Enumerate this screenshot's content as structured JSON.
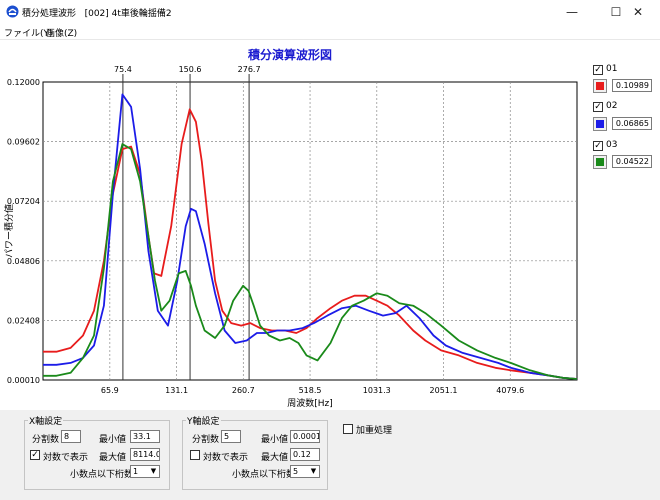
{
  "window": {
    "title": "積分処理波形   [002] 4t車後輪揺備2",
    "minimize": "—",
    "maximize": "☐",
    "close": "✕"
  },
  "menu": {
    "file": "ファイル(Y)",
    "image": "画像(Z)"
  },
  "colors": {
    "s01": "#e81c1c",
    "s02": "#1c1ce8",
    "s03": "#1a8a1a",
    "title": "#1c1cd0"
  },
  "chart_data": {
    "type": "line",
    "title": "積分演算波形図",
    "xlabel": "周波数[Hz]",
    "ylabel": "パワー積分値",
    "x_scale": "log",
    "xlim": [
      33.1,
      8114.0
    ],
    "ylim": [
      0.0001,
      0.12
    ],
    "x_ticks": [
      "65.9",
      "131.1",
      "260.7",
      "518.5",
      "1031.3",
      "2051.1",
      "4079.6"
    ],
    "y_ticks": [
      "0.00010",
      "0.02408",
      "0.04806",
      "0.07204",
      "0.09602",
      "0.12000"
    ],
    "markers": [
      "75.4",
      "150.6",
      "276.7"
    ],
    "grid": true,
    "series": [
      {
        "name": "01",
        "x": [
          33.1,
          38,
          44,
          50,
          56,
          62,
          68,
          75,
          82,
          90,
          98,
          104,
          112,
          124,
          138,
          150,
          160,
          170,
          182,
          195,
          210,
          230,
          255,
          280,
          310,
          350,
          400,
          450,
          500,
          560,
          640,
          720,
          820,
          920,
          1030,
          1150,
          1300,
          1500,
          1700,
          2000,
          2400,
          2900,
          3500,
          4100,
          5000,
          6000,
          7000,
          8114
        ],
        "values": [
          0.0115,
          0.0115,
          0.013,
          0.018,
          0.028,
          0.048,
          0.075,
          0.093,
          0.094,
          0.083,
          0.058,
          0.043,
          0.042,
          0.062,
          0.095,
          0.109,
          0.104,
          0.088,
          0.063,
          0.04,
          0.028,
          0.023,
          0.022,
          0.023,
          0.021,
          0.02,
          0.02,
          0.019,
          0.021,
          0.025,
          0.029,
          0.032,
          0.034,
          0.034,
          0.032,
          0.03,
          0.026,
          0.02,
          0.016,
          0.012,
          0.01,
          0.007,
          0.005,
          0.004,
          0.003,
          0.002,
          0.001,
          0.0005
        ]
      },
      {
        "name": "02",
        "x": [
          33.1,
          38,
          44,
          50,
          56,
          62,
          68,
          75,
          82,
          90,
          98,
          108,
          120,
          132,
          144,
          152,
          160,
          175,
          195,
          215,
          240,
          270,
          300,
          330,
          370,
          420,
          480,
          540,
          620,
          720,
          830,
          950,
          1100,
          1250,
          1400,
          1600,
          1850,
          2100,
          2500,
          3000,
          3600,
          4100,
          5000,
          6000,
          7000,
          8114
        ],
        "values": [
          0.0062,
          0.0062,
          0.007,
          0.009,
          0.014,
          0.03,
          0.075,
          0.115,
          0.11,
          0.085,
          0.052,
          0.028,
          0.022,
          0.04,
          0.062,
          0.069,
          0.068,
          0.055,
          0.035,
          0.02,
          0.015,
          0.016,
          0.019,
          0.019,
          0.02,
          0.02,
          0.021,
          0.023,
          0.026,
          0.029,
          0.03,
          0.028,
          0.026,
          0.027,
          0.03,
          0.025,
          0.018,
          0.014,
          0.011,
          0.009,
          0.007,
          0.005,
          0.003,
          0.002,
          0.001,
          0.0005
        ]
      },
      {
        "name": "03",
        "x": [
          33.1,
          38,
          44,
          50,
          56,
          62,
          68,
          75,
          82,
          90,
          98,
          105,
          112,
          122,
          134,
          144,
          152,
          160,
          175,
          195,
          215,
          235,
          260,
          275,
          290,
          310,
          340,
          380,
          420,
          460,
          500,
          560,
          640,
          720,
          800,
          900,
          1030,
          1150,
          1300,
          1500,
          1700,
          2000,
          2400,
          2900,
          3500,
          4100,
          5000,
          6000,
          7000,
          8114
        ],
        "values": [
          0.0018,
          0.0018,
          0.003,
          0.009,
          0.018,
          0.045,
          0.08,
          0.095,
          0.093,
          0.08,
          0.058,
          0.04,
          0.028,
          0.032,
          0.043,
          0.044,
          0.038,
          0.03,
          0.02,
          0.017,
          0.022,
          0.032,
          0.038,
          0.036,
          0.03,
          0.022,
          0.018,
          0.016,
          0.017,
          0.015,
          0.01,
          0.008,
          0.015,
          0.025,
          0.03,
          0.032,
          0.035,
          0.034,
          0.031,
          0.03,
          0.027,
          0.022,
          0.016,
          0.012,
          0.009,
          0.007,
          0.004,
          0.002,
          0.001,
          0.0005
        ]
      }
    ]
  },
  "legend": [
    {
      "label": "01",
      "checked": "✓",
      "value": "0.10989",
      "color": "#e81c1c"
    },
    {
      "label": "02",
      "checked": "✓",
      "value": "0.06865",
      "color": "#1c1ce8"
    },
    {
      "label": "03",
      "checked": "✓",
      "value": "0.04522",
      "color": "#1a8a1a"
    }
  ],
  "x_settings": {
    "legend": "X軸設定",
    "divisions_label": "分割数",
    "divisions": "8",
    "min_label": "最小値",
    "min": "33.1",
    "log_label": "対数で表示",
    "log_checked": "✓",
    "max_label": "最大値",
    "max": "8114.0",
    "decimal_label": "小数点以下桁数",
    "decimal": "1"
  },
  "y_settings": {
    "legend": "Y軸設定",
    "divisions_label": "分割数",
    "divisions": "5",
    "min_label": "最小値",
    "min": "0.0001",
    "log_label": "対数で表示",
    "log_checked": "",
    "max_label": "最大値",
    "max": "0.12",
    "decimal_label": "小数点以下桁数",
    "decimal": "5"
  },
  "extra": {
    "weighted_label": "加重処理",
    "weighted_checked": ""
  }
}
